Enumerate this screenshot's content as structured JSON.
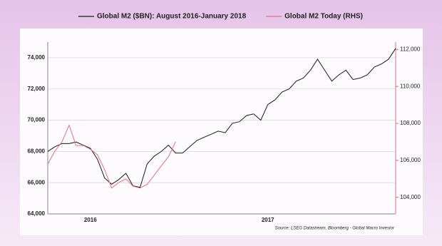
{
  "chart_data": {
    "type": "line",
    "categories": [
      null,
      null,
      null,
      null,
      null,
      null,
      "2016",
      null,
      null,
      null,
      null,
      null,
      null,
      null,
      null,
      null,
      null,
      null,
      null,
      null,
      null,
      null,
      null,
      null,
      null,
      null,
      null,
      null,
      null,
      null,
      null,
      "2017",
      null,
      null,
      null,
      null,
      null,
      null,
      null,
      null,
      null,
      null,
      null,
      null,
      null,
      null,
      null,
      null,
      null,
      null
    ],
    "series": [
      {
        "name": "Global M2 ($BN): August 2016-January 2018",
        "color": "#1a1a1a",
        "axis": "y",
        "values": [
          68000,
          68300,
          68500,
          68500,
          68600,
          68400,
          68200,
          67500,
          66300,
          65900,
          66200,
          66600,
          65800,
          65700,
          67200,
          67700,
          68000,
          68400,
          67900,
          67900,
          68300,
          68700,
          68900,
          69100,
          69300,
          69200,
          69800,
          69900,
          70300,
          70400,
          70000,
          71000,
          71300,
          71800,
          72000,
          72500,
          72700,
          73200,
          73900,
          73200,
          72500,
          72900,
          73200,
          72600,
          72700,
          72900,
          73400,
          73600,
          73900,
          74600
        ]
      },
      {
        "name": "Global M2 Today (RHS)",
        "color": "#e0708a",
        "axis": "y2",
        "values": [
          105800,
          106500,
          107000,
          107900,
          106800,
          106800,
          106600,
          106300,
          105500,
          104500,
          104800,
          105000,
          104600,
          104500,
          104700,
          105200,
          105700,
          106200,
          107000,
          null,
          null,
          null,
          null,
          null,
          null,
          null,
          null,
          null,
          null,
          null,
          null,
          null,
          null,
          null,
          null,
          null,
          null,
          null,
          null,
          null,
          null,
          null,
          null,
          null,
          null,
          null,
          null,
          null,
          null,
          null
        ]
      }
    ],
    "ylim": [
      64000,
      75000
    ],
    "yticks": [
      {
        "value": 64000,
        "label": "64,000"
      },
      {
        "value": 66000,
        "label": "66,000"
      },
      {
        "value": 68000,
        "label": "68,000"
      },
      {
        "value": 70000,
        "label": "70,000"
      },
      {
        "value": 72000,
        "label": "72,000"
      },
      {
        "value": 74000,
        "label": "74,000"
      }
    ],
    "y2lim": [
      103100,
      112400
    ],
    "y2ticks": [
      {
        "value": 104000,
        "label": "104,000"
      },
      {
        "value": 106000,
        "label": "106,000"
      },
      {
        "value": 108000,
        "label": "108,000"
      },
      {
        "value": 110000,
        "label": "110,000"
      },
      {
        "value": 112000,
        "label": "112,000"
      }
    ],
    "grid": true,
    "source": "Source: LSEG Datastream, Bloomberg - Global Macro Investor"
  }
}
